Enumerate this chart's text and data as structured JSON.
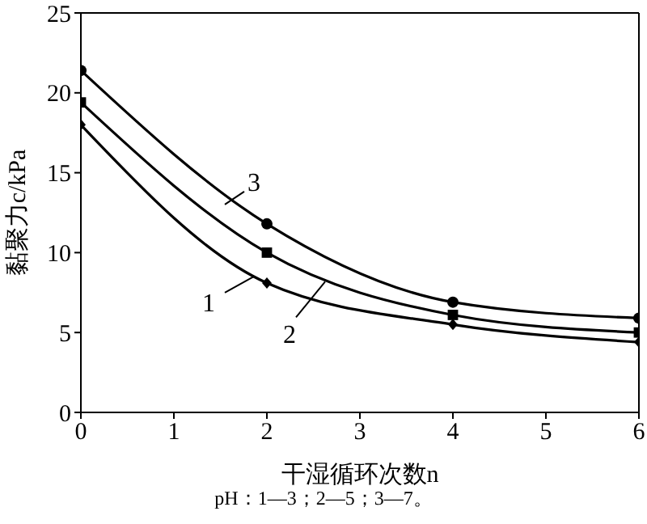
{
  "chart_data": {
    "type": "line",
    "xlabel": "干湿循环次数n",
    "ylabel": "黏聚力c/kPa",
    "x": [
      0,
      2,
      4,
      6
    ],
    "series": [
      {
        "name": "1",
        "color": "#000000",
        "marker": "diamond",
        "values": [
          18.0,
          8.1,
          5.5,
          4.4
        ]
      },
      {
        "name": "2",
        "color": "#000000",
        "marker": "square",
        "values": [
          19.4,
          10.0,
          6.1,
          5.0
        ]
      },
      {
        "name": "3",
        "color": "#000000",
        "marker": "circle",
        "values": [
          21.4,
          11.8,
          6.9,
          5.9
        ]
      }
    ],
    "xlim": [
      0,
      6
    ],
    "xticks": [
      0,
      1,
      2,
      3,
      4,
      5,
      6
    ],
    "ylim": [
      0,
      25
    ],
    "yticks": [
      0,
      5,
      10,
      15,
      20,
      25
    ],
    "grid": false,
    "legend": "center",
    "line_style": "solid",
    "annotations": [
      "pH：1—3；2—5；3—7。"
    ]
  }
}
